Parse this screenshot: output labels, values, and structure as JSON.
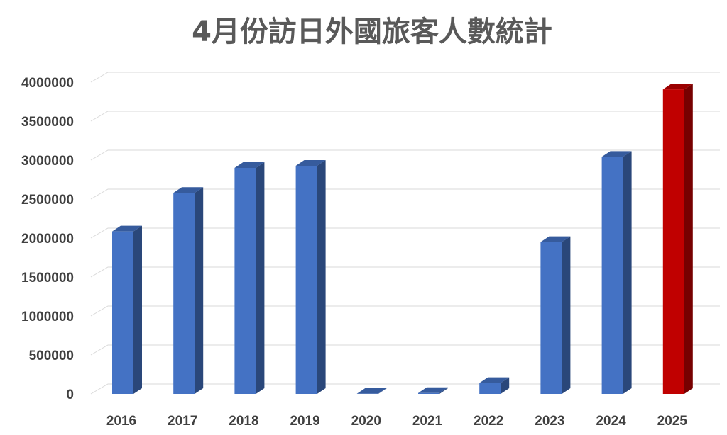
{
  "chart_data": {
    "type": "bar",
    "title": "4月份訪日外國旅客人數統計",
    "xlabel": "",
    "ylabel": "",
    "categories": [
      "2016",
      "2017",
      "2018",
      "2019",
      "2020",
      "2021",
      "2022",
      "2023",
      "2024",
      "2025"
    ],
    "values": [
      2085000,
      2580000,
      2900000,
      2927000,
      2900,
      10900,
      139500,
      1949000,
      3042000,
      3908000
    ],
    "ylim": [
      0,
      4000000
    ],
    "yticks": [
      "0",
      "500000",
      "1000000",
      "1500000",
      "2000000",
      "2500000",
      "3000000",
      "3500000",
      "4000000"
    ],
    "grid": true,
    "legend": "none",
    "style": "3d-column",
    "colors": {
      "default_bar": "#4472c4",
      "highlight_bar": "#c00000",
      "highlight_category": "2025",
      "grid": "#d9d9d9",
      "title": "#595959",
      "tick": "#404040"
    }
  }
}
